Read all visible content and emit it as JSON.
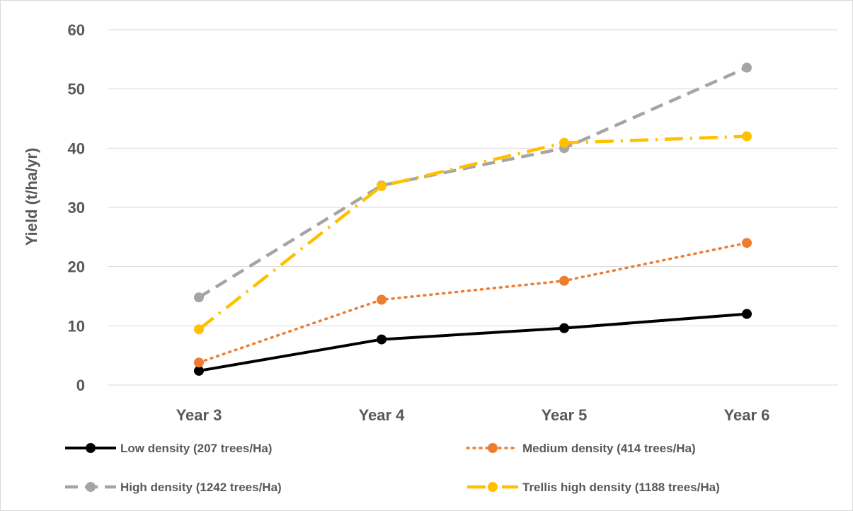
{
  "chart_data": {
    "type": "line",
    "title": "",
    "xlabel": "",
    "ylabel": "Yield (t/ha/yr)",
    "categories": [
      "Year 3",
      "Year 4",
      "Year 5",
      "Year 6"
    ],
    "ylim": [
      0,
      60
    ],
    "yticks": [
      0,
      10,
      20,
      30,
      40,
      50,
      60
    ],
    "grid": true,
    "legend_position": "bottom",
    "series": [
      {
        "name": "Low density (207 trees/Ha)",
        "values": [
          2.4,
          7.7,
          9.6,
          12.0
        ],
        "color": "#000000",
        "dash": "solid"
      },
      {
        "name": "Medium density (414 trees/Ha)",
        "values": [
          3.8,
          14.4,
          17.6,
          24.0
        ],
        "color": "#ed7d31",
        "dash": "dot"
      },
      {
        "name": "High density (1242 trees/Ha)",
        "values": [
          14.8,
          33.7,
          40.0,
          53.6
        ],
        "color": "#a5a5a5",
        "dash": "dash"
      },
      {
        "name": "Trellis high density (1188 trees/Ha)",
        "values": [
          9.4,
          33.6,
          40.9,
          42.0
        ],
        "color": "#ffc000",
        "dash": "dash-dot"
      }
    ]
  }
}
